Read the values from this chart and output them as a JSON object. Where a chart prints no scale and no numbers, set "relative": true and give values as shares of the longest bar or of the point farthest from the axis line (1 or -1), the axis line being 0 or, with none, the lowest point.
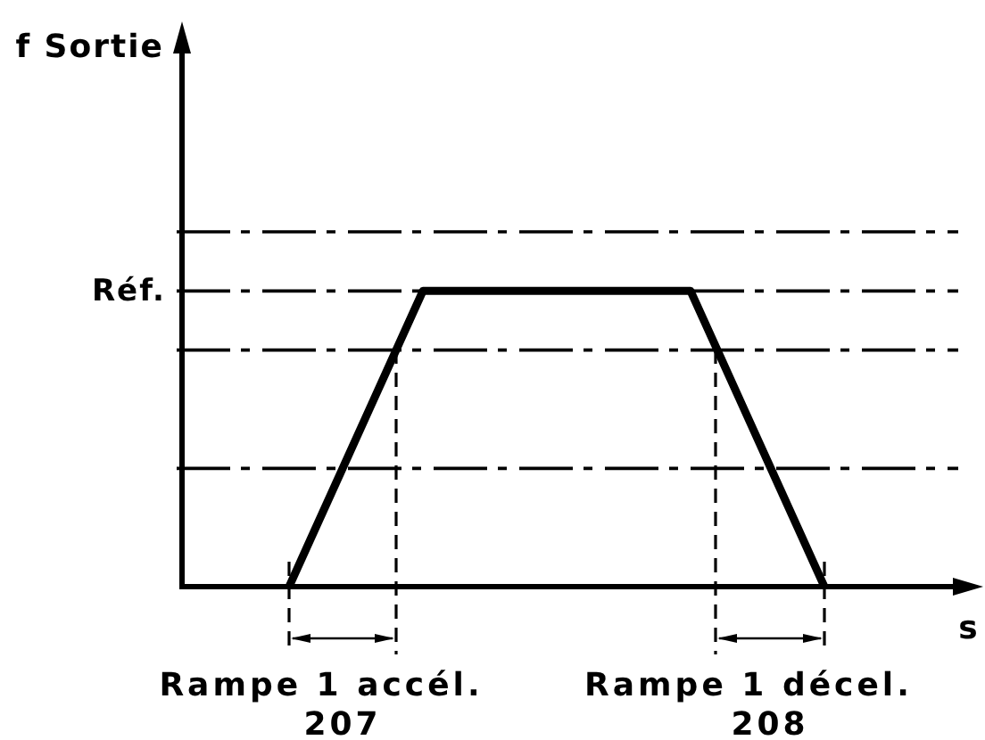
{
  "chart_data": {
    "type": "line",
    "xlabel": "s",
    "categories": [
      null,
      null,
      null,
      null,
      null,
      null,
      null,
      null,
      null,
      null,
      null,
      null,
      null,
      null,
      null,
      null,
      null,
      null,
      null,
      null,
      null,
      null,
      null,
      null,
      null,
      null,
      null,
      null,
      null,
      null
    ],
    "values": [
      null,
      null,
      null,
      null,
      0,
      0.2,
      0.4,
      0.6,
      0.8,
      1,
      1,
      1,
      1,
      1,
      1,
      1,
      1,
      1,
      1,
      1,
      0.8,
      0.6,
      0.4,
      0.2,
      0,
      null,
      null,
      null,
      null,
      null
    ],
    "color": "#000000",
    "relative": true,
    "marker": "none",
    "legend": false,
    "grid": false,
    "ref_lines": [
      {
        "axis": "y",
        "value": 1.2,
        "color": "#000000",
        "line_style": "dashed"
      },
      {
        "axis": "y",
        "value": 1,
        "label": "Réf.",
        "color": "#000000",
        "line_style": "dashed"
      },
      {
        "axis": "y",
        "value": 0.8,
        "color": "#000000",
        "line_style": "dashed"
      },
      {
        "axis": "y",
        "value": 0.4,
        "color": "#000000",
        "line_style": "dashed"
      }
    ],
    "annotations": [
      "f Sortie",
      "Rampe 1 accél.\n207",
      "Rampe 1 décel.\n208"
    ]
  }
}
